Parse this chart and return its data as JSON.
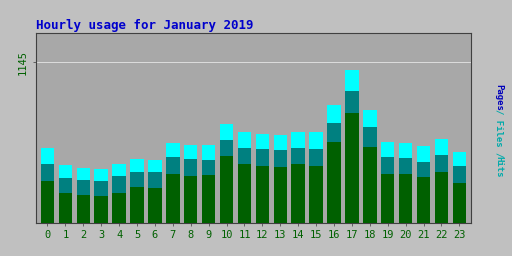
{
  "title": "Hourly usage for January 2019",
  "hours": [
    0,
    1,
    2,
    3,
    4,
    5,
    6,
    7,
    8,
    9,
    10,
    11,
    12,
    13,
    14,
    15,
    16,
    17,
    18,
    19,
    20,
    21,
    22,
    23
  ],
  "hits": [
    530,
    410,
    390,
    380,
    415,
    455,
    450,
    565,
    555,
    555,
    700,
    645,
    635,
    625,
    645,
    645,
    840,
    1090,
    800,
    575,
    565,
    545,
    595,
    505
  ],
  "files": [
    420,
    320,
    305,
    295,
    330,
    365,
    358,
    465,
    455,
    448,
    590,
    535,
    525,
    515,
    535,
    525,
    710,
    940,
    680,
    465,
    462,
    435,
    485,
    405
  ],
  "pages": [
    295,
    215,
    198,
    188,
    215,
    255,
    248,
    345,
    335,
    338,
    472,
    415,
    405,
    395,
    415,
    405,
    572,
    782,
    542,
    345,
    345,
    325,
    365,
    285
  ],
  "ylim_max": 1350,
  "ytick_pos": 1145,
  "ytick_label": "1145",
  "bar_width": 0.75,
  "color_hits": "#00FFFF",
  "color_files": "#008080",
  "color_pages": "#006000",
  "color_border": "#404040",
  "bg_color": "#C0C0C0",
  "plot_bg": "#A8A8A8",
  "title_color": "#0000CC",
  "tick_color": "#006000",
  "grid_color": "#FFFFFF"
}
